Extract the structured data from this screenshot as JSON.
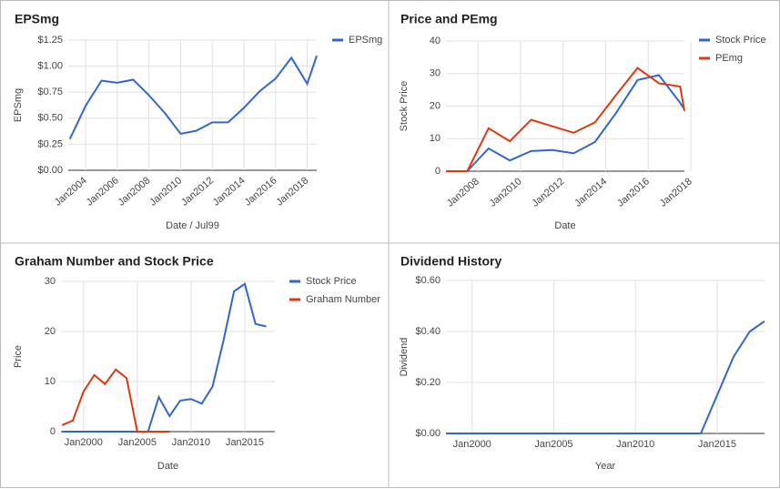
{
  "chart_data": [
    {
      "type": "line",
      "title": "EPSmg",
      "xlabel": "Date / Jul99",
      "ylabel": "EPSmg",
      "x": [
        2003,
        2004,
        2005,
        2006,
        2007,
        2008,
        2009,
        2010,
        2011,
        2012,
        2013,
        2014,
        2015,
        2016,
        2017,
        2018,
        2018.6
      ],
      "xlim": [
        2002.9,
        2018.6
      ],
      "xticks": [
        {
          "value": 2004,
          "label": "Jan2004"
        },
        {
          "value": 2006,
          "label": "Jan2006"
        },
        {
          "value": 2008,
          "label": "Jan2008"
        },
        {
          "value": 2010,
          "label": "Jan2010"
        },
        {
          "value": 2012,
          "label": "Jan2012"
        },
        {
          "value": 2014,
          "label": "Jan2014"
        },
        {
          "value": 2016,
          "label": "Jan2016"
        },
        {
          "value": 2018,
          "label": "Jan2018"
        }
      ],
      "ylim": [
        0,
        1.25
      ],
      "yticks": [
        {
          "value": 0,
          "label": "$0.00"
        },
        {
          "value": 0.25,
          "label": "$0.25"
        },
        {
          "value": 0.5,
          "label": "$0.50"
        },
        {
          "value": 0.75,
          "label": "$0.75"
        },
        {
          "value": 1.0,
          "label": "$1.00"
        },
        {
          "value": 1.25,
          "label": "$1.25"
        }
      ],
      "series": [
        {
          "name": "EPSmg",
          "color": "#3366cc",
          "values": [
            0.3,
            0.62,
            0.86,
            0.84,
            0.87,
            0.72,
            0.55,
            0.35,
            0.38,
            0.46,
            0.46,
            0.6,
            0.76,
            0.88,
            1.08,
            0.83,
            1.1
          ]
        }
      ],
      "legend": "right",
      "grid": true
    },
    {
      "type": "line",
      "title": "Price and PEmg",
      "xlabel": "Date",
      "ylabel": "Stock Price",
      "x": [
        2006.5,
        2007.5,
        2008.5,
        2009.5,
        2010.5,
        2011.5,
        2012.5,
        2013.5,
        2014.5,
        2015.5,
        2016.5,
        2017.5,
        2017.7
      ],
      "xlim": [
        2006.5,
        2017.7
      ],
      "xticks": [
        {
          "value": 2008,
          "label": "Jan2008"
        },
        {
          "value": 2010,
          "label": "Jan2010"
        },
        {
          "value": 2012,
          "label": "Jan2012"
        },
        {
          "value": 2014,
          "label": "Jan2014"
        },
        {
          "value": 2016,
          "label": "Jan2016"
        },
        {
          "value": 2018,
          "label": "Jan2018"
        }
      ],
      "ylim": [
        0,
        40
      ],
      "yticks": [
        0,
        10,
        20,
        30,
        40
      ],
      "series": [
        {
          "name": "Stock Price",
          "color": "#3366cc",
          "values": [
            0,
            0,
            7,
            3.3,
            6.2,
            6.5,
            5.5,
            9,
            18,
            28,
            29.5,
            21,
            19
          ]
        },
        {
          "name": "PEmg",
          "color": "#dc3912",
          "values": [
            0,
            0,
            13.2,
            9.2,
            15.8,
            13.8,
            11.8,
            15,
            23.5,
            31.7,
            27,
            26,
            18.5
          ]
        }
      ],
      "legend": "right",
      "grid": true
    },
    {
      "type": "line",
      "title": "Graham Number and Stock Price",
      "xlabel": "Date",
      "ylabel": "Price",
      "x": [
        1998,
        1999,
        2000,
        2001,
        2002,
        2003,
        2004,
        2005,
        2006,
        2007,
        2008,
        2009,
        2010,
        2011,
        2012,
        2013,
        2014,
        2015,
        2016,
        2017
      ],
      "xlim": [
        1997.9,
        2017.8
      ],
      "xticks": [
        {
          "value": 2000,
          "label": "Jan2000"
        },
        {
          "value": 2005,
          "label": "Jan2005"
        },
        {
          "value": 2010,
          "label": "Jan2010"
        },
        {
          "value": 2015,
          "label": "Jan2015"
        }
      ],
      "ylim": [
        0,
        30
      ],
      "yticks": [
        0,
        10,
        20,
        30
      ],
      "series": [
        {
          "name": "Stock Price",
          "color": "#3366cc",
          "values": [
            0,
            0,
            0,
            0,
            0,
            0,
            0,
            0,
            0,
            6.9,
            3.1,
            6.2,
            6.5,
            5.6,
            9,
            18,
            28,
            29.5,
            21.5,
            21
          ]
        },
        {
          "name": "Graham Number",
          "color": "#dc3912",
          "values": [
            1.3,
            2.2,
            8,
            11.3,
            9.5,
            12.4,
            10.7,
            0,
            0,
            0,
            0,
            null,
            null,
            null,
            null,
            null,
            null,
            null,
            null,
            null
          ]
        }
      ],
      "legend": "right",
      "grid": true
    },
    {
      "type": "line",
      "title": "Dividend History",
      "xlabel": "Year",
      "ylabel": "Dividend",
      "x": [
        1998.4,
        2014,
        2015,
        2016,
        2017,
        2017.9
      ],
      "xlim": [
        1998.4,
        2017.9
      ],
      "xticks": [
        {
          "value": 2000,
          "label": "Jan2000"
        },
        {
          "value": 2005,
          "label": "Jan2005"
        },
        {
          "value": 2010,
          "label": "Jan2010"
        },
        {
          "value": 2015,
          "label": "Jan2015"
        }
      ],
      "ylim": [
        0,
        0.6
      ],
      "yticks": [
        {
          "value": 0,
          "label": "$0.00"
        },
        {
          "value": 0.2,
          "label": "$0.20"
        },
        {
          "value": 0.4,
          "label": "$0.40"
        },
        {
          "value": 0.6,
          "label": "$0.60"
        }
      ],
      "series": [
        {
          "name": "Dividend",
          "color": "#3366cc",
          "values": [
            0,
            0,
            0.15,
            0.3,
            0.4,
            0.44
          ]
        }
      ],
      "legend": "none",
      "grid": true
    }
  ]
}
